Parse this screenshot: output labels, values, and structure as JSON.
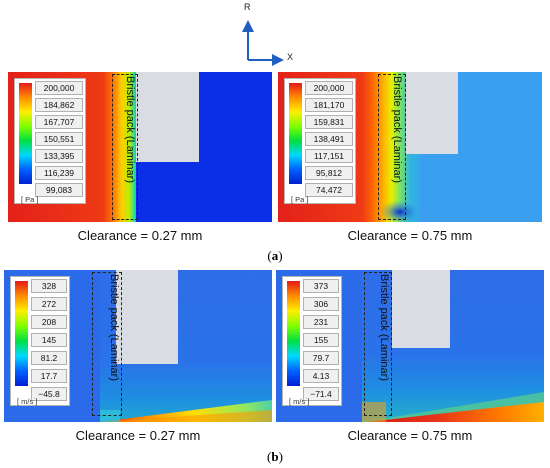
{
  "axes": {
    "r_label": "R",
    "x_label": "X"
  },
  "part_a": {
    "label": "a",
    "panels": [
      {
        "legend_ticks": [
          "200,000",
          "184,862",
          "167,707",
          "150,551",
          "133,395",
          "116,239",
          "99,083"
        ],
        "unit": "[ Pa ]",
        "region_label": "Bristle pack (Laminar)",
        "caption": "Clearance = 0.27 mm"
      },
      {
        "legend_ticks": [
          "200,000",
          "181,170",
          "159,831",
          "138,491",
          "117,151",
          "95,812",
          "74,472"
        ],
        "unit": "[ Pa ]",
        "region_label": "Bristle pack (Laminar)",
        "caption": "Clearance = 0.75 mm"
      }
    ]
  },
  "part_b": {
    "label": "b",
    "panels": [
      {
        "legend_ticks": [
          "328",
          "272",
          "208",
          "145",
          "81.2",
          "17.7",
          "−45.8"
        ],
        "unit": "[ m/s ]",
        "region_label": "Bristle pack (Laminar)",
        "caption": "Clearance = 0.27 mm"
      },
      {
        "legend_ticks": [
          "373",
          "306",
          "231",
          "155",
          "79.7",
          "4.13",
          "−71.4"
        ],
        "unit": "[ m/s ]",
        "region_label": "Bristle pack (Laminar)",
        "caption": "Clearance = 0.75 mm"
      }
    ]
  }
}
